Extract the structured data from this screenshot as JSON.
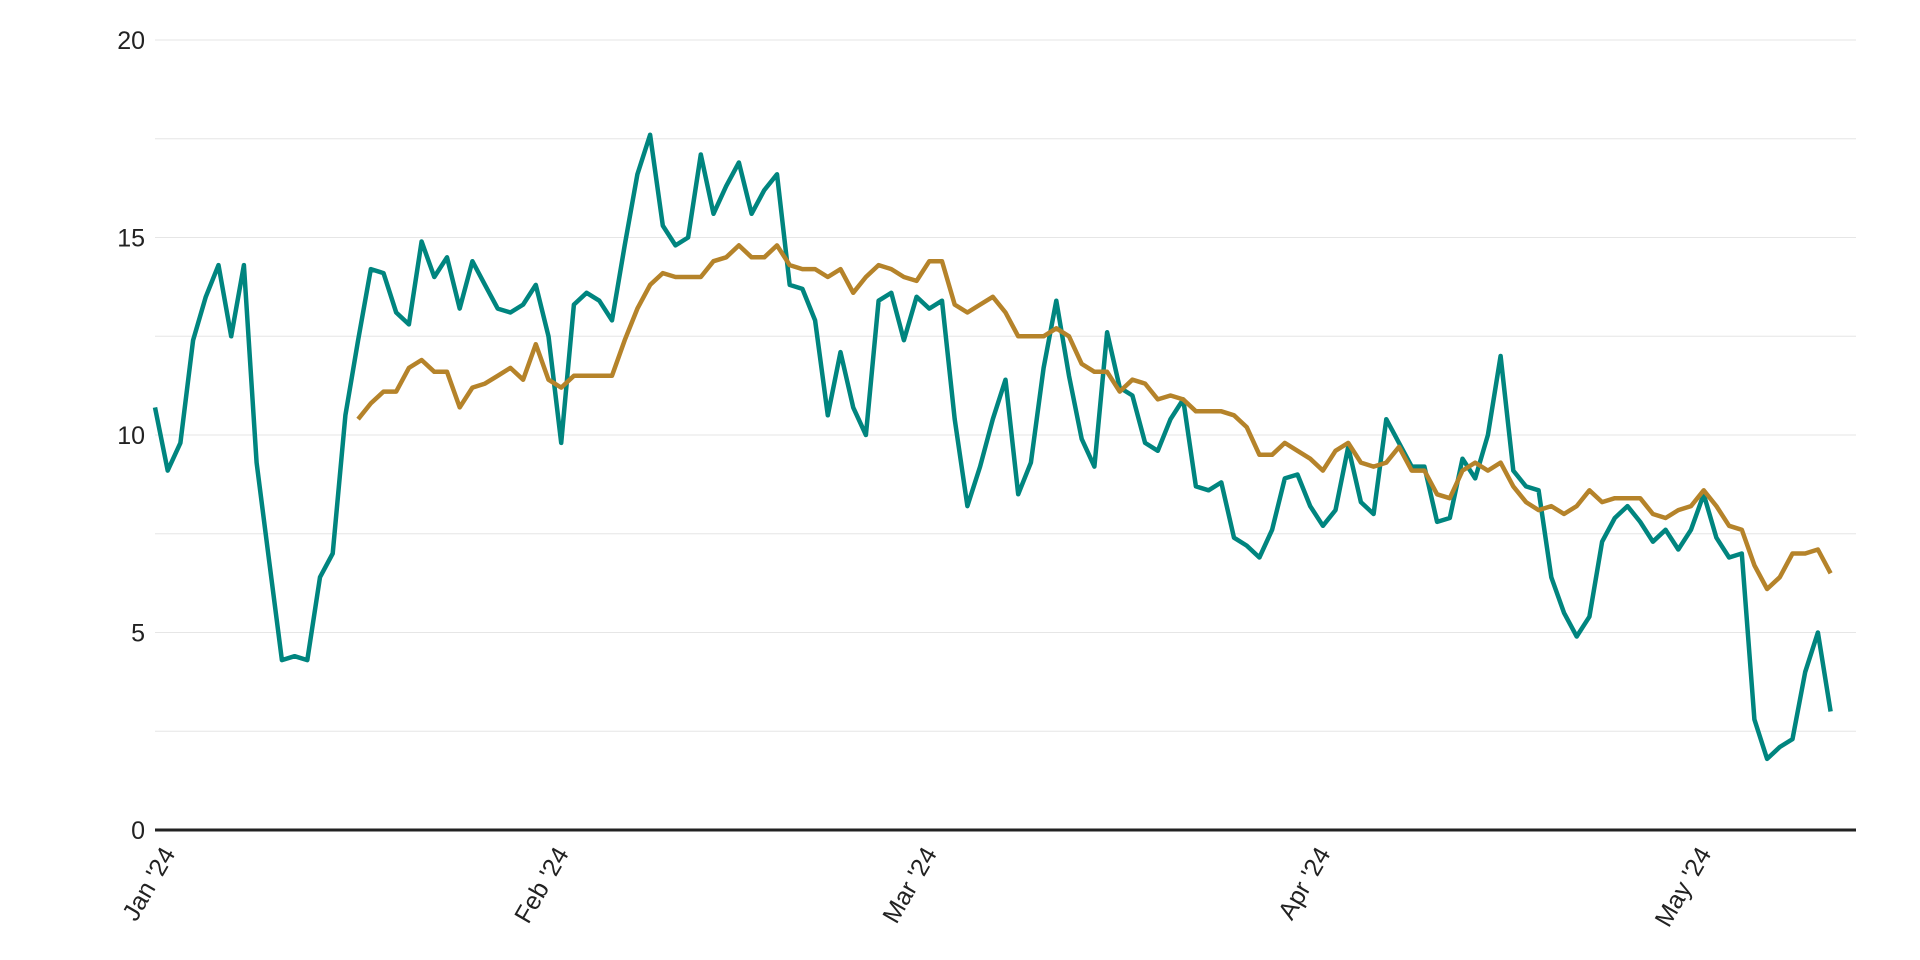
{
  "chart_data": {
    "type": "line",
    "title": "",
    "xlabel": "",
    "ylabel": "",
    "ylim": [
      0,
      20
    ],
    "y_ticks": [
      "0",
      "5",
      "10",
      "15",
      "20"
    ],
    "y_tick_values": [
      0,
      5,
      10,
      15,
      20
    ],
    "x_ticks": [
      "Jan '24",
      "Feb '24",
      "Mar '24",
      "Apr '24",
      "May '24"
    ],
    "x_tick_dates": [
      "2024-01-01",
      "2024-02-01",
      "2024-03-01",
      "2024-04-01",
      "2024-05-01"
    ],
    "xlim": [
      "2024-01-01",
      "2024-05-14"
    ],
    "grid": true,
    "legend": "none",
    "colors": {
      "daily": "#00857f",
      "average": "#b5832a",
      "axis": "#222222",
      "grid": "#e6e6e6"
    },
    "series": [
      {
        "start_date": "2024-01-01",
        "color": "#00857f",
        "values": [
          10.7,
          9.1,
          9.8,
          12.4,
          13.5,
          14.3,
          12.5,
          14.3,
          9.3,
          6.8,
          4.3,
          4.4,
          4.3,
          6.4,
          7.0,
          10.5,
          12.4,
          14.2,
          14.1,
          13.1,
          12.8,
          14.9,
          14.0,
          14.5,
          13.2,
          14.4,
          13.8,
          13.2,
          13.1,
          13.3,
          13.8,
          12.5,
          9.8,
          13.3,
          13.6,
          13.4,
          12.9,
          14.8,
          16.6,
          17.6,
          15.3,
          14.8,
          15.0,
          17.1,
          15.6,
          16.3,
          16.9,
          15.6,
          16.2,
          16.6,
          13.8,
          13.7,
          12.9,
          10.5,
          12.1,
          10.7,
          10.0,
          13.4,
          13.6,
          12.4,
          13.5,
          13.2,
          13.4,
          10.4,
          8.2,
          9.2,
          10.4,
          11.4,
          8.5,
          9.3,
          11.7,
          13.4,
          11.5,
          9.9,
          9.2,
          12.6,
          11.2,
          11.0,
          9.8,
          9.6,
          10.4,
          10.9,
          8.7,
          8.6,
          8.8,
          7.4,
          7.2,
          6.9,
          7.6,
          8.9,
          9.0,
          8.2,
          7.7,
          8.1,
          9.7,
          8.3,
          8.0,
          10.4,
          9.8,
          9.2,
          9.2,
          7.8,
          7.9,
          9.4,
          8.9,
          10.0,
          12.0,
          9.1,
          8.7,
          8.6,
          6.4,
          5.5,
          4.9,
          5.4,
          7.3,
          7.9,
          8.2,
          7.8,
          7.3,
          7.6,
          7.1,
          7.6,
          8.5,
          7.4,
          6.9,
          7.0,
          2.8,
          1.8,
          2.1,
          2.3,
          4.0,
          5.0,
          3.0
        ]
      },
      {
        "start_date": "2024-01-17",
        "color": "#b5832a",
        "values": [
          10.4,
          10.8,
          11.1,
          11.1,
          11.7,
          11.9,
          11.6,
          11.6,
          10.7,
          11.2,
          11.3,
          11.5,
          11.7,
          11.4,
          12.3,
          11.4,
          11.2,
          11.5,
          11.5,
          11.5,
          11.5,
          12.4,
          13.2,
          13.8,
          14.1,
          14.0,
          14.0,
          14.0,
          14.4,
          14.5,
          14.8,
          14.5,
          14.5,
          14.8,
          14.3,
          14.2,
          14.2,
          14.0,
          14.2,
          13.6,
          14.0,
          14.3,
          14.2,
          14.0,
          13.9,
          14.4,
          14.4,
          13.3,
          13.1,
          13.3,
          13.5,
          13.1,
          12.5,
          12.5,
          12.5,
          12.7,
          12.5,
          11.8,
          11.6,
          11.6,
          11.1,
          11.4,
          11.3,
          10.9,
          11.0,
          10.9,
          10.6,
          10.6,
          10.6,
          10.5,
          10.2,
          9.5,
          9.5,
          9.8,
          9.6,
          9.4,
          9.1,
          9.6,
          9.8,
          9.3,
          9.2,
          9.3,
          9.7,
          9.1,
          9.1,
          8.5,
          8.4,
          9.1,
          9.3,
          9.1,
          9.3,
          8.7,
          8.3,
          8.1,
          8.2,
          8.0,
          8.2,
          8.6,
          8.3,
          8.4,
          8.4,
          8.4,
          8.0,
          7.9,
          8.1,
          8.2,
          8.6,
          8.2,
          7.7,
          7.6,
          6.7,
          6.1,
          6.4,
          7.0,
          7.0,
          7.1,
          6.5
        ]
      }
    ]
  }
}
